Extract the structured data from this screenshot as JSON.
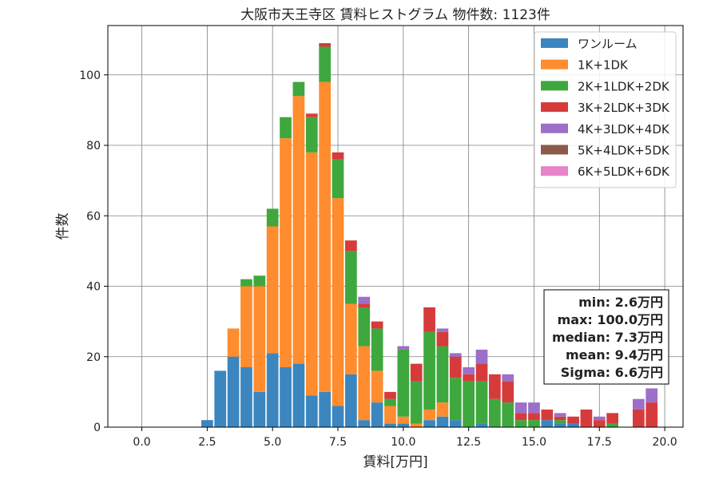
{
  "chart_data": {
    "type": "bar",
    "stacked": true,
    "title": "大阪市天王寺区 賃料ヒストグラム 物件数: 1123件",
    "xlabel": "賃料[万円]",
    "ylabel": "件数",
    "xlim": [
      -1.3,
      20.7
    ],
    "ylim": [
      0,
      114
    ],
    "xticks": [
      0.0,
      2.5,
      5.0,
      7.5,
      10.0,
      12.5,
      15.0,
      17.5,
      20.0
    ],
    "xtick_labels": [
      "0.0",
      "2.5",
      "5.0",
      "7.5",
      "10.0",
      "12.5",
      "15.0",
      "17.5",
      "20.0"
    ],
    "yticks": [
      0,
      20,
      40,
      60,
      80,
      100
    ],
    "ytick_labels": [
      "0",
      "20",
      "40",
      "60",
      "80",
      "100"
    ],
    "grid": true,
    "legend_position": "top-right",
    "bin_width": 0.5,
    "bin_starts": [
      2.25,
      2.75,
      3.25,
      3.75,
      4.25,
      4.75,
      5.25,
      5.75,
      6.25,
      6.75,
      7.25,
      7.75,
      8.25,
      8.75,
      9.25,
      9.75,
      10.25,
      10.75,
      11.25,
      11.75,
      12.25,
      12.75,
      13.25,
      13.75,
      14.25,
      14.75,
      15.25,
      15.75,
      16.25,
      16.75,
      17.25,
      17.75,
      18.25,
      18.75,
      19.25
    ],
    "series": [
      {
        "name": "ワンルーム",
        "color": "#3b86bf",
        "values": [
          2,
          16,
          20,
          17,
          10,
          21,
          17,
          18,
          9,
          10,
          6,
          15,
          2,
          7,
          1,
          1,
          0,
          2,
          3,
          2,
          0,
          1,
          0,
          0,
          0,
          0,
          2,
          1,
          1,
          0,
          0,
          0,
          0,
          0,
          0
        ]
      },
      {
        "name": "1K+1DK",
        "color": "#ff8c2e",
        "values": [
          0,
          0,
          8,
          23,
          30,
          36,
          65,
          76,
          69,
          88,
          59,
          20,
          21,
          9,
          5,
          2,
          1,
          3,
          4,
          0,
          0,
          0,
          0,
          0,
          0,
          0,
          0,
          0,
          0,
          0,
          0,
          0,
          0,
          0,
          0
        ]
      },
      {
        "name": "2K+1LDK+2DK",
        "color": "#3ea83e",
        "values": [
          0,
          0,
          0,
          2,
          3,
          5,
          6,
          4,
          10,
          10,
          11,
          15,
          11,
          12,
          2,
          19,
          12,
          22,
          16,
          12,
          13,
          12,
          8,
          7,
          2,
          2,
          0,
          1,
          0,
          0,
          0,
          1,
          0,
          0,
          0
        ]
      },
      {
        "name": "3K+2LDK+3DK",
        "color": "#d63b3b",
        "values": [
          0,
          0,
          0,
          0,
          0,
          0,
          0,
          0,
          1,
          1,
          2,
          3,
          1,
          2,
          2,
          0,
          5,
          7,
          4,
          6,
          2,
          5,
          7,
          6,
          2,
          2,
          3,
          1,
          2,
          5,
          2,
          3,
          0,
          5,
          7
        ]
      },
      {
        "name": "4K+3LDK+4DK",
        "color": "#9d6fc8",
        "values": [
          0,
          0,
          0,
          0,
          0,
          0,
          0,
          0,
          0,
          0,
          0,
          0,
          2,
          0,
          0,
          1,
          0,
          0,
          1,
          1,
          2,
          4,
          0,
          2,
          3,
          3,
          0,
          1,
          0,
          0,
          1,
          0,
          0,
          3,
          4
        ]
      },
      {
        "name": "5K+4LDK+5DK",
        "color": "#8c5a4a",
        "values": [
          0,
          0,
          0,
          0,
          0,
          0,
          0,
          0,
          0,
          0,
          0,
          0,
          0,
          0,
          0,
          0,
          0,
          0,
          0,
          0,
          0,
          0,
          0,
          0,
          0,
          0,
          0,
          0,
          0,
          0,
          0,
          0,
          0,
          0,
          0
        ]
      },
      {
        "name": "6K+5LDK+6DK",
        "color": "#e783c8",
        "values": [
          0,
          0,
          0,
          0,
          0,
          0,
          0,
          0,
          0,
          0,
          0,
          0,
          0,
          0,
          0,
          0,
          0,
          0,
          0,
          0,
          0,
          0,
          0,
          0,
          0,
          0,
          0,
          0,
          0,
          0,
          0,
          0,
          0,
          0,
          0
        ]
      }
    ],
    "stats": [
      "min: 2.6万円",
      "max: 100.0万円",
      "median: 7.3万円",
      "mean: 9.4万円",
      "Sigma: 6.6万円"
    ]
  }
}
